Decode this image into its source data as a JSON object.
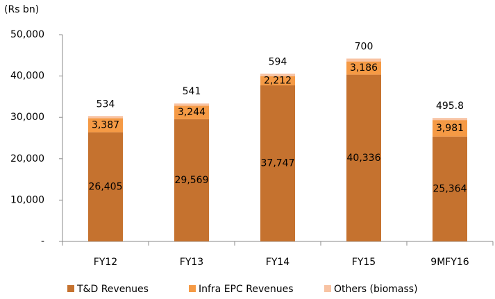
{
  "chart_data": {
    "type": "stacked_bar",
    "y_label": "(Rs bn)",
    "categories": [
      "FY12",
      "FY13",
      "FY14",
      "FY15",
      "9MFY16"
    ],
    "series": [
      {
        "name": "T&D Revenues",
        "color": "#c5722f",
        "values": [
          26405,
          29569,
          37747,
          40336,
          25364
        ],
        "value_labels": [
          "26,405",
          "29,569",
          "37,747",
          "40,336",
          "25,364"
        ]
      },
      {
        "name": "Infra EPC Revenues",
        "color": "#f59a45",
        "values": [
          3387,
          3244,
          2212,
          3186,
          3981
        ],
        "value_labels": [
          "3,387",
          "3,244",
          "2,212",
          "3,186",
          "3,981"
        ]
      },
      {
        "name": "Others (biomass)",
        "color": "#f8c3a3",
        "values": [
          534,
          541,
          594,
          700,
          495.8
        ]
      }
    ],
    "ylim": [
      0,
      50000
    ],
    "yticks": [
      {
        "value": 0,
        "label": "-"
      },
      {
        "value": 10000,
        "label": "10,000"
      },
      {
        "value": 20000,
        "label": "20,000"
      },
      {
        "value": 30000,
        "label": "30,000"
      },
      {
        "value": 40000,
        "label": "40,000"
      },
      {
        "value": 50000,
        "label": "50,000"
      }
    ],
    "legend": "bottom"
  }
}
